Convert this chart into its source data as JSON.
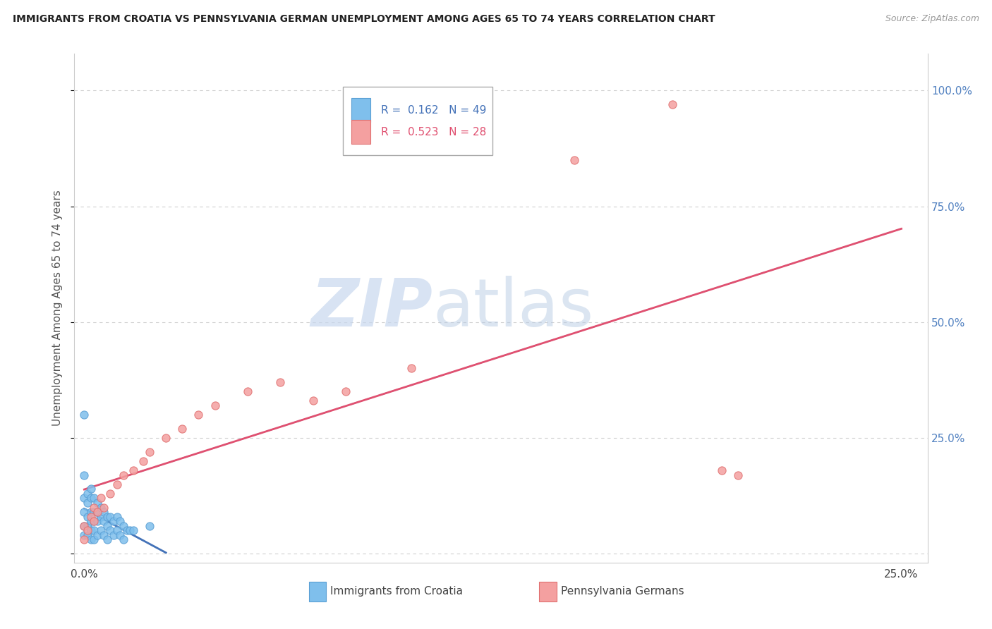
{
  "title": "IMMIGRANTS FROM CROATIA VS PENNSYLVANIA GERMAN UNEMPLOYMENT AMONG AGES 65 TO 74 YEARS CORRELATION CHART",
  "source": "Source: ZipAtlas.com",
  "ylabel": "Unemployment Among Ages 65 to 74 years",
  "croatia_color": "#7fbfec",
  "croatia_edge_color": "#5a9fd4",
  "pa_german_color": "#f4a0a0",
  "pa_german_edge_color": "#e07070",
  "croatia_line_color": "#4472b8",
  "pa_german_line_color": "#e05070",
  "dash_color": "#8ab4d8",
  "legend_croatia_R": "0.162",
  "legend_croatia_N": "49",
  "legend_pa_R": "0.523",
  "legend_pa_N": "28",
  "croatia_x": [
    0.0,
    0.0,
    0.0,
    0.0,
    0.0,
    0.0,
    0.001,
    0.001,
    0.001,
    0.001,
    0.001,
    0.002,
    0.002,
    0.002,
    0.002,
    0.002,
    0.002,
    0.003,
    0.003,
    0.003,
    0.003,
    0.003,
    0.004,
    0.004,
    0.004,
    0.004,
    0.005,
    0.005,
    0.005,
    0.006,
    0.006,
    0.006,
    0.007,
    0.007,
    0.007,
    0.008,
    0.008,
    0.009,
    0.009,
    0.01,
    0.01,
    0.011,
    0.011,
    0.012,
    0.012,
    0.013,
    0.014,
    0.015,
    0.02
  ],
  "croatia_y": [
    0.3,
    0.17,
    0.12,
    0.09,
    0.06,
    0.04,
    0.13,
    0.11,
    0.08,
    0.06,
    0.04,
    0.14,
    0.12,
    0.09,
    0.07,
    0.05,
    0.03,
    0.12,
    0.09,
    0.07,
    0.05,
    0.03,
    0.11,
    0.09,
    0.07,
    0.04,
    0.1,
    0.08,
    0.05,
    0.09,
    0.07,
    0.04,
    0.08,
    0.06,
    0.03,
    0.08,
    0.05,
    0.07,
    0.04,
    0.08,
    0.05,
    0.07,
    0.04,
    0.06,
    0.03,
    0.05,
    0.05,
    0.05,
    0.06
  ],
  "pa_x": [
    0.0,
    0.0,
    0.001,
    0.002,
    0.003,
    0.003,
    0.004,
    0.005,
    0.006,
    0.008,
    0.01,
    0.012,
    0.015,
    0.018,
    0.02,
    0.025,
    0.03,
    0.035,
    0.04,
    0.05,
    0.06,
    0.07,
    0.08,
    0.1,
    0.15,
    0.18,
    0.195,
    0.2
  ],
  "pa_y": [
    0.03,
    0.06,
    0.05,
    0.08,
    0.07,
    0.1,
    0.09,
    0.12,
    0.1,
    0.13,
    0.15,
    0.17,
    0.18,
    0.2,
    0.22,
    0.25,
    0.27,
    0.3,
    0.32,
    0.35,
    0.37,
    0.33,
    0.35,
    0.4,
    0.85,
    0.97,
    0.18,
    0.17
  ],
  "xlim": [
    -0.003,
    0.258
  ],
  "ylim": [
    -0.02,
    1.08
  ],
  "x_ticks": [
    0.0,
    0.05,
    0.1,
    0.15,
    0.2,
    0.25
  ],
  "x_tick_labels": [
    "0.0%",
    "",
    "",
    "",
    "",
    "25.0%"
  ],
  "y_ticks": [
    0.0,
    0.25,
    0.5,
    0.75,
    1.0
  ],
  "y_right_labels": [
    "",
    "25.0%",
    "50.0%",
    "75.0%",
    "100.0%"
  ],
  "grid_color": "#d0d0d0",
  "spine_color": "#cccccc"
}
